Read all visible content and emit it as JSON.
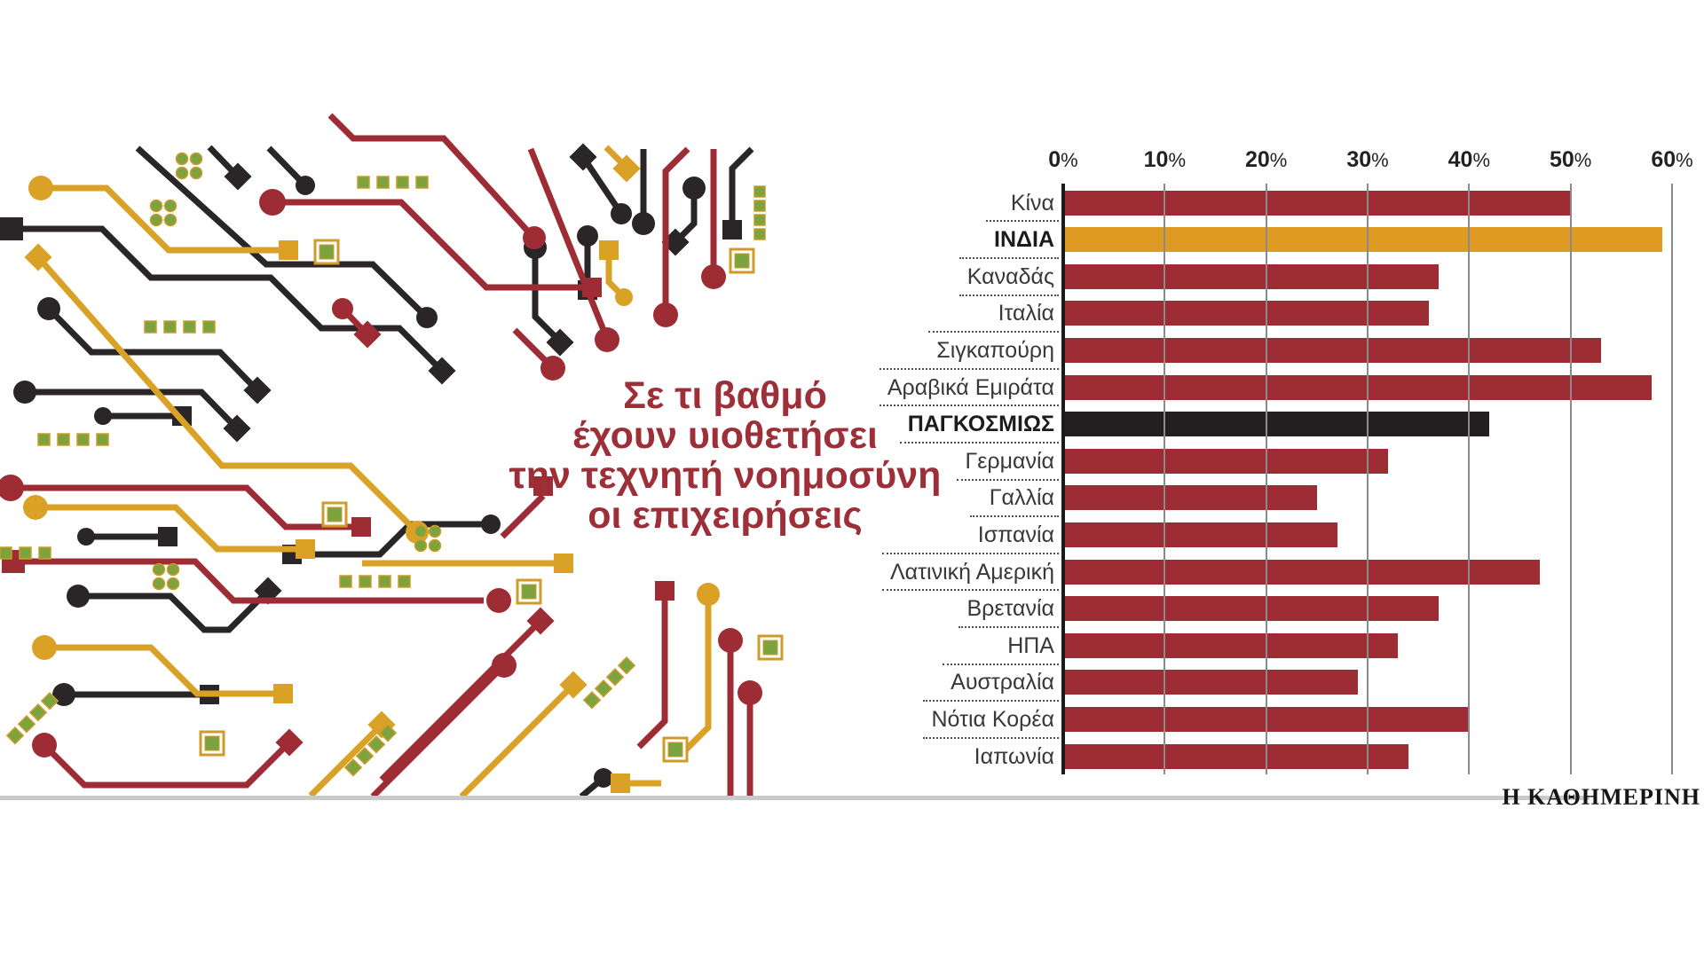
{
  "title": {
    "lines": [
      "Σε τι βαθμό",
      "έχουν υιοθετήσει",
      "την τεχνητή νοημοσύνη",
      "οι επιχειρήσεις"
    ]
  },
  "branding": {
    "publisher": "Η ΚΑΘΗΜΕΡΙΝΗ"
  },
  "palette": {
    "red": "#9e2c35",
    "gold": "#d9a126",
    "ink": "#2a2627",
    "green": "#7da33f",
    "grid": "#8a8a8a",
    "axis": "#1b1b1b",
    "title": "#9c2f38",
    "rule": "#c9c9c9"
  },
  "chart_data": {
    "type": "bar",
    "orientation": "horizontal",
    "title": "Σε τι βαθμό έχουν υιοθετήσει την τεχνητή νοημοσύνη οι επιχειρήσεις",
    "unit": "%",
    "xlim": [
      0,
      60
    ],
    "ticks": [
      0,
      10,
      20,
      30,
      40,
      50,
      60
    ],
    "grid": true,
    "categories": [
      "Κίνα",
      "ΙΝΔΙΑ",
      "Καναδάς",
      "Ιταλία",
      "Σιγκαπούρη",
      "Αραβικά Εμιράτα",
      "ΠΑΓΚΟΣΜΙΩΣ",
      "Γερμανία",
      "Γαλλία",
      "Ισπανία",
      "Λατινική Αμερική",
      "Βρετανία",
      "ΗΠΑ",
      "Αυστραλία",
      "Νότια Κορέα",
      "Ιαπωνία"
    ],
    "values": [
      50,
      59,
      37,
      36,
      53,
      58,
      42,
      32,
      25,
      27,
      47,
      37,
      33,
      29,
      40,
      34
    ],
    "highlights": {
      "ΙΝΔΙΑ": "orange",
      "ΠΑΓΚΟΣΜΙΩΣ": "black"
    },
    "colors": {
      "default": "#9e2c35",
      "orange": "#de9a23",
      "black": "#231f20"
    }
  }
}
